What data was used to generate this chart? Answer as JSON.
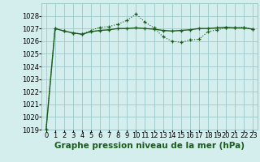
{
  "x": [
    0,
    1,
    2,
    3,
    4,
    5,
    6,
    7,
    8,
    9,
    10,
    11,
    12,
    13,
    14,
    15,
    16,
    17,
    18,
    19,
    20,
    21,
    22,
    23
  ],
  "line1": [
    1019.0,
    1027.0,
    1026.8,
    1026.65,
    1026.55,
    1026.75,
    1026.85,
    1026.9,
    1027.0,
    1027.0,
    1027.05,
    1027.0,
    1026.95,
    1026.85,
    1026.8,
    1026.85,
    1026.9,
    1027.0,
    1027.0,
    1027.05,
    1027.1,
    1027.05,
    1027.05,
    1026.95
  ],
  "line2": [
    1019.0,
    1027.0,
    1026.8,
    1026.65,
    1026.55,
    1026.85,
    1027.1,
    1027.15,
    1027.35,
    1027.65,
    1028.15,
    1027.5,
    1027.05,
    1026.35,
    1026.0,
    1025.9,
    1026.1,
    1026.15,
    1026.75,
    1026.9,
    1027.05,
    1027.05,
    1027.1,
    1026.95
  ],
  "line_color": "#1a5c1a",
  "bg_color": "#d4eeee",
  "grid_color": "#9dc8c8",
  "title": "Graphe pression niveau de la mer (hPa)",
  "ylim": [
    1019,
    1029
  ],
  "yticks": [
    1019,
    1020,
    1021,
    1022,
    1023,
    1024,
    1025,
    1026,
    1027,
    1028
  ],
  "xlim": [
    -0.5,
    23.5
  ],
  "xticks": [
    0,
    1,
    2,
    3,
    4,
    5,
    6,
    7,
    8,
    9,
    10,
    11,
    12,
    13,
    14,
    15,
    16,
    17,
    18,
    19,
    20,
    21,
    22,
    23
  ],
  "tick_fontsize": 6,
  "title_fontsize": 7.5
}
